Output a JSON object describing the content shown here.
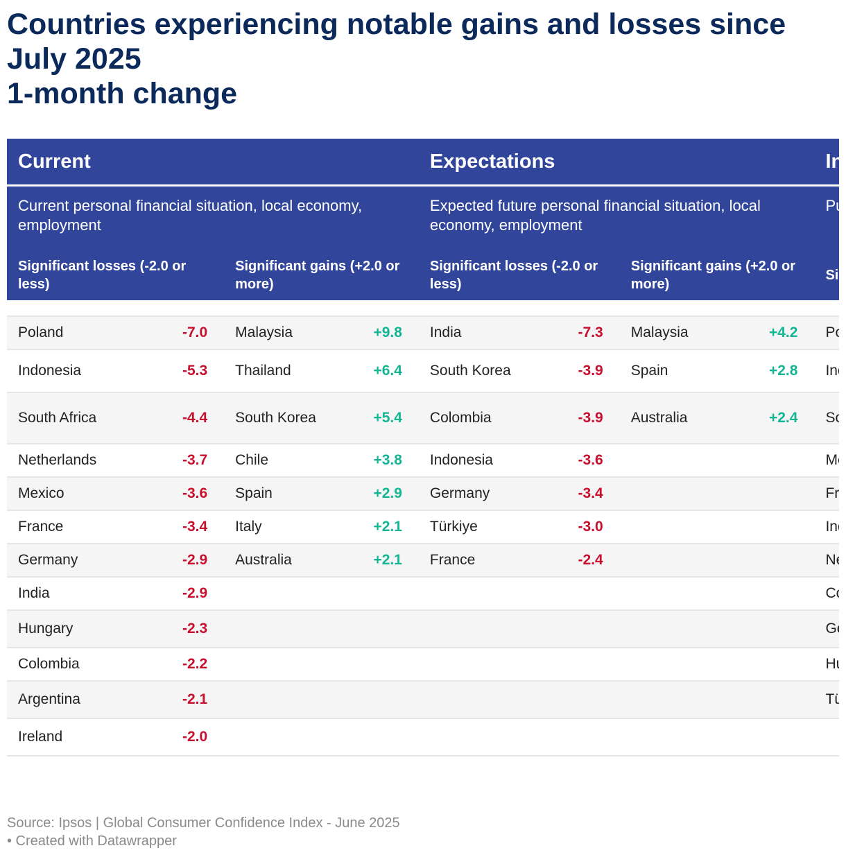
{
  "title_lines": [
    "Countries experiencing notable gains and losses since July 2025",
    "1-month change"
  ],
  "groups": [
    {
      "name": "Current",
      "description": "Current personal financial situation, local economy, employment"
    },
    {
      "name": "Expectations",
      "description": "Expected future personal financial situation, local economy, employment"
    },
    {
      "name": "Inv",
      "description": "Pur fina"
    }
  ],
  "sub_headers": [
    "Significant losses (-2.0 or less)",
    "Significant gains (+2.0 or more)",
    "Significant losses (-2.0 or less)",
    "Significant gains (+2.0 or more)",
    "Sign or le"
  ],
  "chart_data": {
    "type": "table",
    "title": "Countries experiencing notable gains and losses since July 2025 1-month change",
    "columns": [
      {
        "group": "Current",
        "name": "Significant losses (-2.0 or less)",
        "rows": [
          {
            "country": "Poland",
            "value": "-7.0"
          },
          {
            "country": "Indonesia",
            "value": "-5.3"
          },
          {
            "country": "South Africa",
            "value": "-4.4"
          },
          {
            "country": "Netherlands",
            "value": "-3.7"
          },
          {
            "country": "Mexico",
            "value": "-3.6"
          },
          {
            "country": "France",
            "value": "-3.4"
          },
          {
            "country": "Germany",
            "value": "-2.9"
          },
          {
            "country": "India",
            "value": "-2.9"
          },
          {
            "country": "Hungary",
            "value": "-2.3"
          },
          {
            "country": "Colombia",
            "value": "-2.2"
          },
          {
            "country": "Argentina",
            "value": "-2.1"
          },
          {
            "country": "Ireland",
            "value": "-2.0"
          }
        ]
      },
      {
        "group": "Current",
        "name": "Significant gains (+2.0 or more)",
        "rows": [
          {
            "country": "Malaysia",
            "value": "+9.8"
          },
          {
            "country": "Thailand",
            "value": "+6.4"
          },
          {
            "country": "South Korea",
            "value": "+5.4"
          },
          {
            "country": "Chile",
            "value": "+3.8"
          },
          {
            "country": "Spain",
            "value": "+2.9"
          },
          {
            "country": "Italy",
            "value": "+2.1"
          },
          {
            "country": "Australia",
            "value": "+2.1"
          }
        ]
      },
      {
        "group": "Expectations",
        "name": "Significant losses (-2.0 or less)",
        "rows": [
          {
            "country": "India",
            "value": "-7.3"
          },
          {
            "country": "South Korea",
            "value": "-3.9"
          },
          {
            "country": "Colombia",
            "value": "-3.9"
          },
          {
            "country": "Indonesia",
            "value": "-3.6"
          },
          {
            "country": "Germany",
            "value": "-3.4"
          },
          {
            "country": "Türkiye",
            "value": "-3.0"
          },
          {
            "country": "France",
            "value": "-2.4"
          }
        ]
      },
      {
        "group": "Expectations",
        "name": "Significant gains (+2.0 or more)",
        "rows": [
          {
            "country": "Malaysia",
            "value": "+4.2"
          },
          {
            "country": "Spain",
            "value": "+2.8"
          },
          {
            "country": "Australia",
            "value": "+2.4"
          }
        ]
      },
      {
        "group": "Inv",
        "name": "Sign or le",
        "rows": [
          {
            "country": "Pola",
            "value": ""
          },
          {
            "country": "Indo",
            "value": ""
          },
          {
            "country": "Sou Afri",
            "value": ""
          },
          {
            "country": "Mex",
            "value": ""
          },
          {
            "country": "Fran",
            "value": ""
          },
          {
            "country": "Indi",
            "value": ""
          },
          {
            "country": "Net",
            "value": ""
          },
          {
            "country": "Colo",
            "value": ""
          },
          {
            "country": "Gern",
            "value": ""
          },
          {
            "country": "Hun",
            "value": ""
          },
          {
            "country": "Türk",
            "value": ""
          },
          {
            "country": "",
            "value": ""
          }
        ]
      }
    ]
  },
  "colors": {
    "header_bg": "#31469b",
    "title": "#0b2a5b",
    "loss": "#c8102e",
    "gain": "#14b592",
    "row_alt": "#f5f5f5"
  },
  "footer": {
    "source": "Source: Ipsos | Global Consumer Confidence Index - June 2025",
    "created": "• Created with Datawrapper"
  }
}
